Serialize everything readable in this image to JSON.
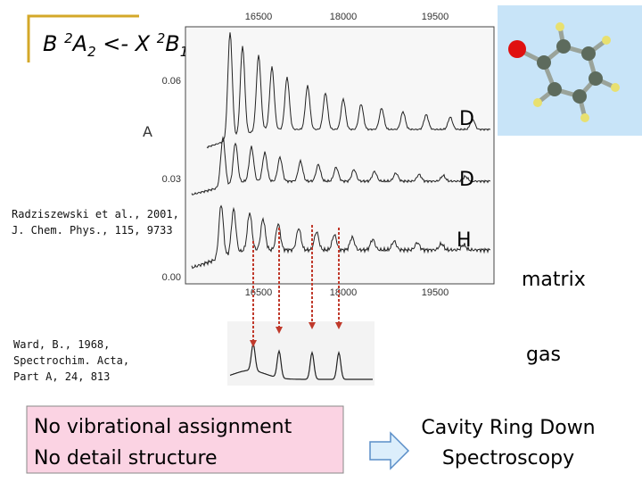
{
  "title": {
    "segments": [
      "B ",
      "2",
      "A",
      "2",
      " <- X ",
      "2",
      "B",
      "1"
    ]
  },
  "spectrum": {
    "top_ticks": [
      "16500",
      "18000",
      "19500"
    ],
    "bottom_ticks": [
      "16500",
      "18000",
      "19500"
    ],
    "y_ticks": [
      "0.06",
      "0.03",
      "0.00"
    ],
    "trace_labels": [
      "A",
      "D",
      "D",
      "H"
    ]
  },
  "references": [
    [
      "Radziszewski et al., 2001,",
      "J. Chem. Phys., 115, 9733"
    ],
    [
      "Ward, B., 1968,",
      "Spectrochim. Acta,",
      "Part A, 24, 813"
    ]
  ],
  "matrix": "matrix",
  "gas": "gas",
  "problems": [
    "No vibrational assignment",
    "No detail structure"
  ],
  "method": [
    "Cavity Ring Down",
    "Spectroscopy"
  ]
}
